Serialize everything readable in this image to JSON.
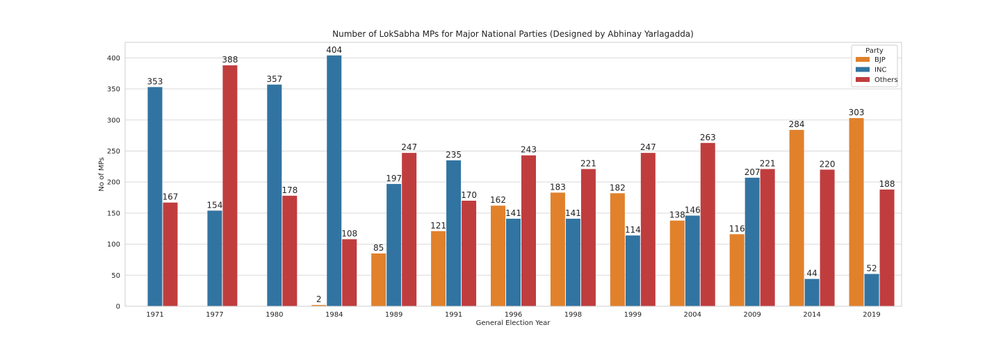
{
  "chart_data": {
    "type": "bar",
    "title": "Number of LokSabha MPs for Major National Parties   (Designed by Abhinay Yarlagadda)",
    "xlabel": "General Election Year",
    "ylabel": "No of MPs",
    "ylim": [
      0,
      425
    ],
    "yticks": [
      0,
      50,
      100,
      150,
      200,
      250,
      300,
      350,
      400
    ],
    "grid": true,
    "legend": {
      "title": "Party",
      "placement": "top-right"
    },
    "categories": [
      "1971",
      "1977",
      "1980",
      "1984",
      "1989",
      "1991",
      "1996",
      "1998",
      "1999",
      "2004",
      "2009",
      "2014",
      "2019"
    ],
    "series": [
      {
        "name": "BJP",
        "color": "#e1812c",
        "values": [
          null,
          null,
          null,
          2,
          85,
          121,
          162,
          183,
          182,
          138,
          116,
          284,
          303
        ]
      },
      {
        "name": "INC",
        "color": "#3274a1",
        "values": [
          353,
          154,
          357,
          404,
          197,
          235,
          141,
          141,
          114,
          146,
          207,
          44,
          52
        ]
      },
      {
        "name": "Others",
        "color": "#c03d3e",
        "values": [
          167,
          388,
          178,
          108,
          247,
          170,
          243,
          221,
          247,
          263,
          221,
          220,
          188
        ]
      }
    ]
  }
}
